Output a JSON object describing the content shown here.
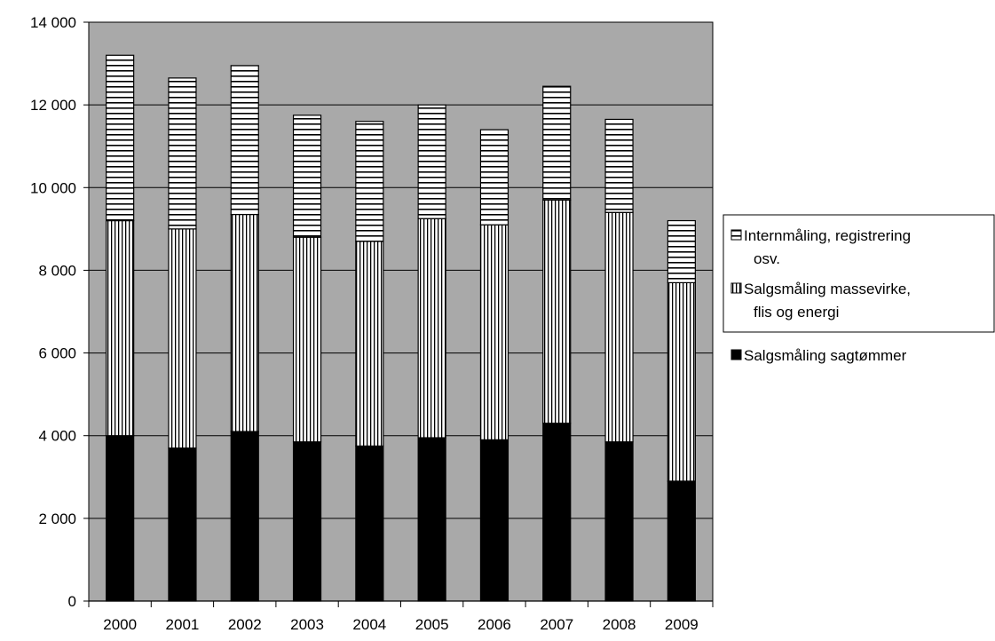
{
  "chart_data": {
    "type": "bar",
    "stacked": true,
    "title": "",
    "xlabel": "",
    "ylabel": "",
    "categories": [
      "2000",
      "2001",
      "2002",
      "2003",
      "2004",
      "2005",
      "2006",
      "2007",
      "2008",
      "2009"
    ],
    "ylim": [
      0,
      14000
    ],
    "yticks": [
      0,
      2000,
      4000,
      6000,
      8000,
      10000,
      12000,
      14000
    ],
    "ytick_labels": [
      "0",
      "2 000",
      "4 000",
      "6 000",
      "8 000",
      "10 000",
      "12 000",
      "14 000"
    ],
    "grid": true,
    "legend_position": "right",
    "series": [
      {
        "name": "Salgsmåling sagtømmer",
        "pattern": "solid",
        "color": "#000000",
        "values": [
          4000,
          3700,
          4100,
          3850,
          3750,
          3950,
          3900,
          4300,
          3850,
          2900
        ]
      },
      {
        "name": "Salgsmåling massevirke, flis og energi",
        "pattern": "vertical-lines",
        "color": "#000000",
        "values": [
          5200,
          5300,
          5250,
          4950,
          4950,
          5300,
          5200,
          5400,
          5550,
          4800
        ]
      },
      {
        "name": "Internmåling, registrering osv.",
        "pattern": "horizontal-lines",
        "color": "#000000",
        "values": [
          4000,
          3650,
          3600,
          2950,
          2900,
          2750,
          2300,
          2750,
          2250,
          1500
        ]
      }
    ],
    "legend_entries": [
      {
        "lines": [
          "Internmåling, registrering",
          "osv."
        ],
        "pattern": "horizontal-lines"
      },
      {
        "lines": [
          "Salgsmåling massevirke,",
          "flis og energi"
        ],
        "pattern": "vertical-lines"
      },
      {
        "lines": [
          "Salgsmåling sagtømmer"
        ],
        "pattern": "solid"
      }
    ],
    "colors": {
      "plot_background": "#a9a9a9",
      "bar_fill": "#ffffff",
      "ink": "#000000"
    }
  }
}
